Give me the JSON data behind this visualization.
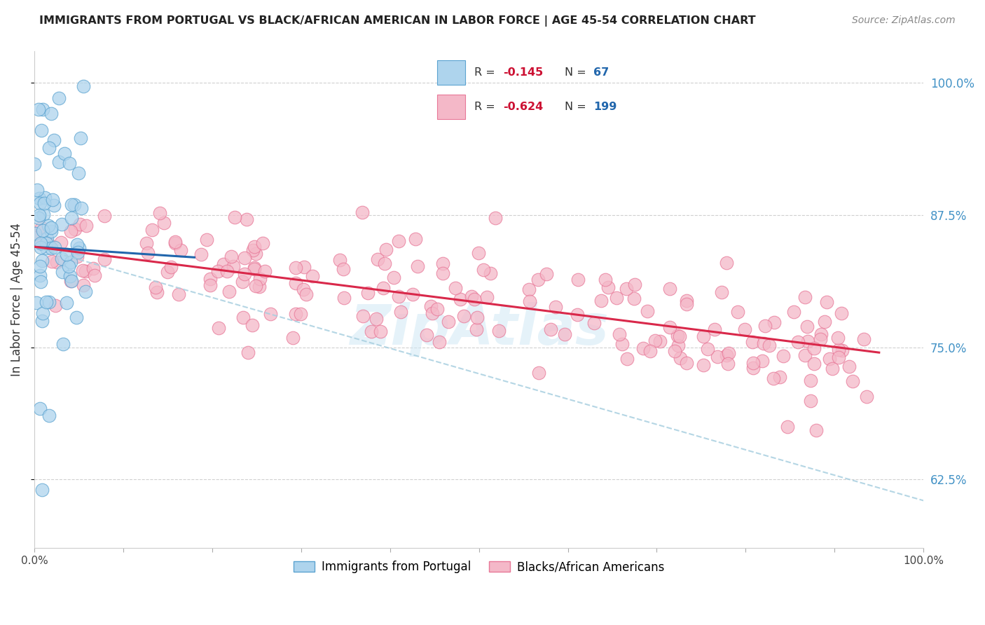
{
  "title": "IMMIGRANTS FROM PORTUGAL VS BLACK/AFRICAN AMERICAN IN LABOR FORCE | AGE 45-54 CORRELATION CHART",
  "source": "Source: ZipAtlas.com",
  "ylabel": "In Labor Force | Age 45-54",
  "xlim": [
    0.0,
    1.0
  ],
  "ylim": [
    0.56,
    1.03
  ],
  "yticks": [
    0.625,
    0.75,
    0.875,
    1.0
  ],
  "ytick_labels": [
    "62.5%",
    "75.0%",
    "87.5%",
    "100.0%"
  ],
  "xticks": [
    0.0,
    0.1,
    0.2,
    0.3,
    0.4,
    0.5,
    0.6,
    0.7,
    0.8,
    0.9,
    1.0
  ],
  "xtick_labels": [
    "0.0%",
    "",
    "",
    "",
    "",
    "",
    "",
    "",
    "",
    "",
    "100.0%"
  ],
  "blue_R": -0.145,
  "blue_N": 67,
  "pink_R": -0.624,
  "pink_N": 199,
  "blue_color": "#aed4ed",
  "blue_edge": "#5ba3d0",
  "pink_color": "#f4b8c8",
  "pink_edge": "#e87898",
  "blue_line_color": "#2166ac",
  "pink_line_color": "#d9284a",
  "dashed_line_color": "#a8cfe0",
  "watermark_color": "#d0e8f5",
  "title_color": "#222222",
  "axis_label_color": "#333333",
  "tick_label_color_right": "#4292c6",
  "grid_color": "#d0d0d0",
  "background_color": "#ffffff",
  "legend_text_color": "#333333",
  "legend_r_color": "#cc1133",
  "legend_n_color": "#2166ac",
  "blue_line_x_start": 0.0,
  "blue_line_x_end": 0.18,
  "blue_line_y_start": 0.845,
  "blue_line_y_end": 0.835,
  "dashed_line_x_start": 0.0,
  "dashed_line_x_end": 1.0,
  "dashed_line_y_start": 0.845,
  "dashed_line_y_end": 0.605,
  "pink_line_x_start": 0.0,
  "pink_line_x_end": 0.95,
  "pink_line_y_start": 0.845,
  "pink_line_y_end": 0.745
}
